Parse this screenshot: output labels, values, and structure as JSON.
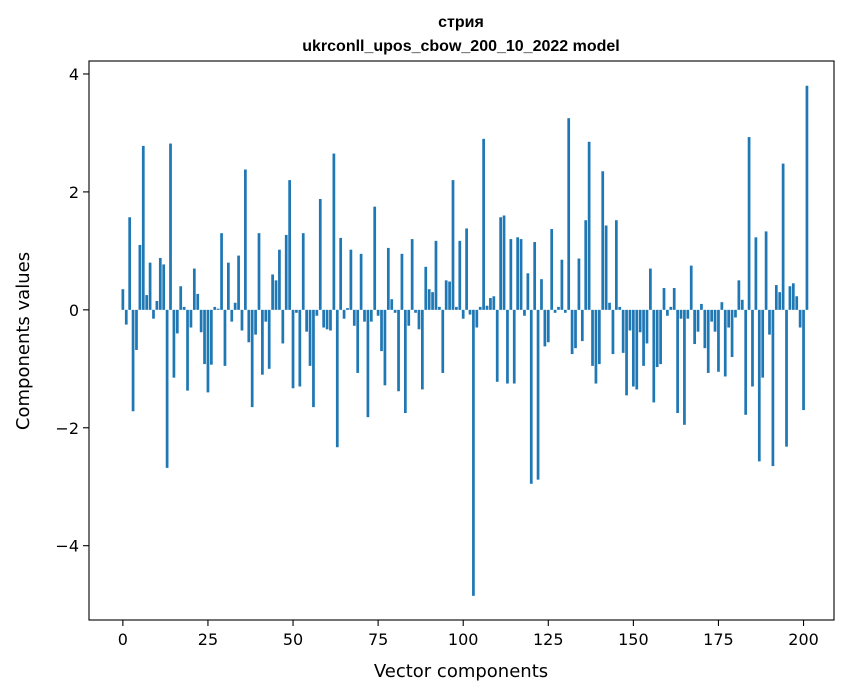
{
  "chart_data": {
    "type": "bar",
    "title": "стрия",
    "subtitle": "ukrconll_upos_cbow_200_10_2022 model",
    "xlabel": "Vector components",
    "ylabel": "Components values",
    "xlim": [
      -9.95,
      208.95
    ],
    "ylim": [
      -5.26,
      4.22
    ],
    "xticks": [
      0,
      25,
      50,
      75,
      100,
      125,
      150,
      175,
      200
    ],
    "yticks": [
      -4,
      -2,
      0,
      2,
      4
    ],
    "xtick_labels": [
      "0",
      "25",
      "50",
      "75",
      "100",
      "125",
      "150",
      "175",
      "200"
    ],
    "ytick_labels": [
      "−4",
      "−2",
      "0",
      "2",
      "4"
    ],
    "grid": false,
    "bar_color": "#1f77b4",
    "values": [
      0.35,
      -0.25,
      1.57,
      -1.72,
      -0.68,
      1.1,
      2.78,
      0.25,
      0.8,
      -0.15,
      0.15,
      0.88,
      0.77,
      -2.68,
      2.82,
      -1.15,
      -0.4,
      0.4,
      0.05,
      -1.37,
      -0.3,
      0.7,
      0.27,
      -0.38,
      -0.92,
      -1.4,
      -0.93,
      0.05,
      0.02,
      1.3,
      -0.95,
      0.8,
      -0.2,
      0.12,
      0.92,
      -0.35,
      2.38,
      -0.55,
      -1.65,
      -0.42,
      1.3,
      -1.1,
      -0.2,
      -1.0,
      0.6,
      0.5,
      1.02,
      -0.57,
      1.27,
      2.2,
      -1.33,
      -0.05,
      -1.3,
      1.3,
      -0.37,
      -0.95,
      -1.65,
      -0.1,
      1.88,
      -0.3,
      -0.33,
      -0.35,
      2.65,
      -2.33,
      1.22,
      -0.15,
      0.03,
      1.02,
      -0.27,
      -1.07,
      0.95,
      -0.2,
      -1.82,
      -0.2,
      1.75,
      -0.1,
      -0.7,
      -1.28,
      1.05,
      0.18,
      -0.05,
      -1.38,
      0.95,
      -1.75,
      -0.27,
      1.2,
      -0.05,
      -0.33,
      -1.35,
      0.73,
      0.35,
      0.3,
      1.17,
      0.05,
      -1.07,
      0.5,
      0.48,
      2.2,
      0.05,
      1.17,
      -0.15,
      1.38,
      -0.08,
      -4.85,
      -0.3,
      0.05,
      2.9,
      0.07,
      0.2,
      0.23,
      -1.22,
      1.57,
      1.6,
      -1.25,
      1.2,
      -1.25,
      1.23,
      1.2,
      -0.1,
      0.62,
      -2.95,
      1.15,
      -2.88,
      0.52,
      -0.62,
      -0.55,
      1.37,
      -0.05,
      0.05,
      0.85,
      -0.05,
      3.25,
      -0.75,
      -0.65,
      0.87,
      -0.53,
      1.52,
      2.85,
      -0.95,
      -1.25,
      -0.92,
      2.35,
      1.43,
      0.12,
      -0.75,
      1.52,
      0.05,
      -0.73,
      -1.45,
      -0.35,
      -1.3,
      -1.35,
      -0.38,
      -0.95,
      -0.57,
      0.7,
      -1.57,
      -0.97,
      -0.92,
      0.37,
      -0.1,
      0.05,
      0.37,
      -1.75,
      -0.15,
      -1.95,
      -0.15,
      0.75,
      -0.58,
      -0.37,
      0.1,
      -0.65,
      -1.07,
      -0.2,
      -0.37,
      -1.05,
      0.13,
      -1.13,
      -0.3,
      -0.8,
      -0.13,
      0.5,
      0.17,
      -1.78,
      2.93,
      -1.3,
      1.23,
      -2.57,
      -1.15,
      1.33,
      -0.42,
      -2.65,
      0.42,
      0.3,
      2.48,
      -2.32,
      0.4,
      0.45,
      0.23,
      -0.3,
      -1.7,
      3.8
    ]
  }
}
